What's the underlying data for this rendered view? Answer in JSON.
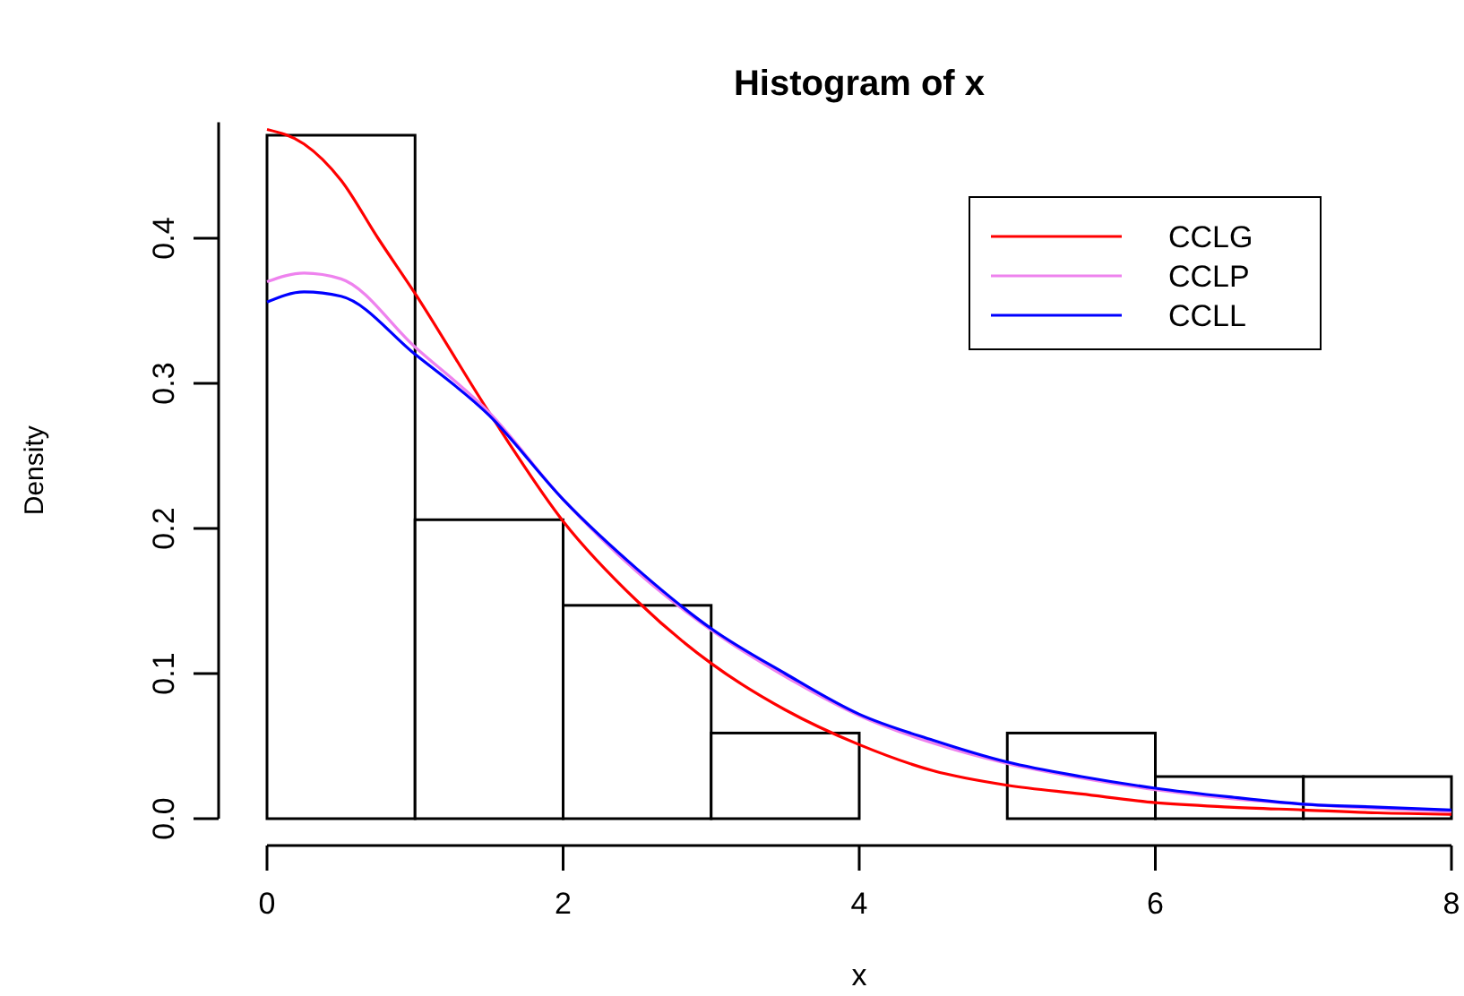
{
  "chart_data": {
    "type": "histogram",
    "title": "Histogram of x",
    "xlabel": "x",
    "ylabel": "Density",
    "bins": [
      0,
      1,
      2,
      3,
      4,
      5,
      6,
      7,
      8
    ],
    "values": [
      0.471,
      0.206,
      0.147,
      0.059,
      0,
      0.059,
      0.029,
      0.029
    ],
    "color": "#ffffff",
    "xlim": [
      0,
      8
    ],
    "ylim": [
      0,
      0.48
    ],
    "xticks": [
      0,
      2,
      4,
      6,
      8
    ],
    "yticks": [
      {
        "value": 0,
        "label": "0.0"
      },
      0.1,
      0.2,
      0.3,
      0.4
    ],
    "grid": false,
    "legend": "top right",
    "series": [
      {
        "name": "CCLG",
        "type": "line",
        "color": "#ff0000",
        "x": [
          0,
          0.25,
          0.5,
          0.75,
          1,
          1.5,
          2,
          2.5,
          3,
          3.5,
          4,
          4.5,
          5,
          5.5,
          6,
          6.5,
          7,
          7.5,
          8
        ],
        "values": [
          0.475,
          0.465,
          0.44,
          0.4,
          0.362,
          0.28,
          0.205,
          0.15,
          0.107,
          0.075,
          0.051,
          0.033,
          0.023,
          0.017,
          0.011,
          0.008,
          0.006,
          0.004,
          0.003
        ]
      },
      {
        "name": "CCLP",
        "type": "line",
        "color": "#ee82ee",
        "x": [
          0,
          0.25,
          0.5,
          1,
          1.5,
          2,
          2.5,
          3,
          3.5,
          4,
          4.5,
          5,
          5.5,
          6,
          6.5,
          7,
          7.5,
          8
        ],
        "values": [
          0.37,
          0.376,
          0.372,
          0.325,
          0.28,
          0.22,
          0.17,
          0.13,
          0.098,
          0.071,
          0.052,
          0.038,
          0.028,
          0.02,
          0.014,
          0.01,
          0.007,
          0.005
        ]
      },
      {
        "name": "CCLL",
        "type": "line",
        "color": "#0000ff",
        "x": [
          0,
          0.25,
          0.5,
          1,
          1.5,
          2,
          2.5,
          3,
          3.5,
          4,
          4.5,
          5,
          5.5,
          6,
          6.5,
          7,
          7.5,
          8
        ],
        "values": [
          0.356,
          0.363,
          0.36,
          0.32,
          0.278,
          0.22,
          0.172,
          0.131,
          0.1,
          0.072,
          0.054,
          0.039,
          0.029,
          0.021,
          0.015,
          0.01,
          0.008,
          0.006
        ]
      }
    ]
  }
}
